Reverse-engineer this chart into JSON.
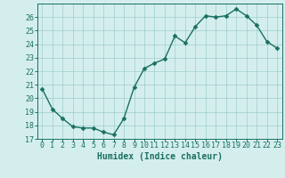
{
  "xlabel": "Humidex (Indice chaleur)",
  "ylabel": "",
  "x_values": [
    0,
    1,
    2,
    3,
    4,
    5,
    6,
    7,
    8,
    9,
    10,
    11,
    12,
    13,
    14,
    15,
    16,
    17,
    18,
    19,
    20,
    21,
    22,
    23
  ],
  "y_values": [
    20.7,
    19.2,
    18.5,
    17.9,
    17.8,
    17.8,
    17.5,
    17.3,
    18.5,
    20.8,
    22.2,
    22.6,
    22.9,
    24.6,
    24.1,
    25.3,
    26.1,
    26.0,
    26.1,
    26.6,
    26.1,
    25.4,
    24.2,
    23.7
  ],
  "line_color": "#1a7060",
  "marker_color": "#1a7060",
  "bg_color": "#d4eeee",
  "grid_color": "#a0cccc",
  "tick_label_color": "#1a7060",
  "axis_color": "#1a7060",
  "ylim": [
    17,
    27
  ],
  "yticks": [
    17,
    18,
    19,
    20,
    21,
    22,
    23,
    24,
    25,
    26
  ],
  "xticks": [
    0,
    1,
    2,
    3,
    4,
    5,
    6,
    7,
    8,
    9,
    10,
    11,
    12,
    13,
    14,
    15,
    16,
    17,
    18,
    19,
    20,
    21,
    22,
    23
  ],
  "xlabel_fontsize": 7,
  "tick_fontsize": 6,
  "marker_size": 2.5,
  "line_width": 1.0
}
